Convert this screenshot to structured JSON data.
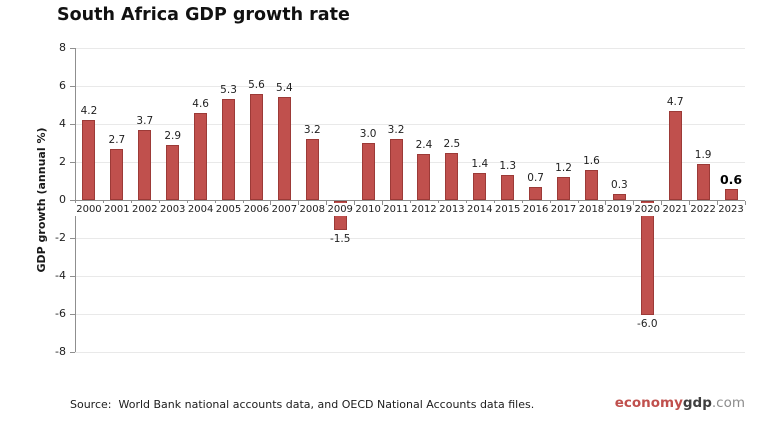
{
  "title": "South Africa GDP growth rate",
  "chart_data": {
    "type": "bar",
    "title": "South Africa GDP growth rate",
    "categories": [
      "2000",
      "2001",
      "2002",
      "2003",
      "2004",
      "2005",
      "2006",
      "2007",
      "2008",
      "2009",
      "2010",
      "2011",
      "2012",
      "2013",
      "2014",
      "2015",
      "2016",
      "2017",
      "2018",
      "2019",
      "2020",
      "2021",
      "2022",
      "2023"
    ],
    "values": [
      4.2,
      2.7,
      3.7,
      2.9,
      4.6,
      5.3,
      5.6,
      5.4,
      3.2,
      -1.5,
      3.0,
      3.2,
      2.4,
      2.5,
      1.4,
      1.3,
      0.7,
      1.2,
      1.6,
      0.3,
      -6.0,
      4.7,
      1.9,
      0.6
    ],
    "value_labels": [
      "4.2",
      "2.7",
      "3.7",
      "2.9",
      "4.6",
      "5.3",
      "5.6",
      "5.4",
      "3.2",
      "-1.5",
      "3.0",
      "3.2",
      "2.4",
      "2.5",
      "1.4",
      "1.3",
      "0.7",
      "1.2",
      "1.6",
      "0.3",
      "-6.0",
      "4.7",
      "1.9",
      "0.6"
    ],
    "xlabel": "",
    "ylabel": "GDP growth (annual %)",
    "ylim": [
      -8,
      8
    ],
    "yticks": [
      8,
      6,
      4,
      2,
      0,
      -2,
      -4,
      -6,
      -8
    ],
    "grid": true,
    "legend_position": "none",
    "bar_color": "#C0504D",
    "bar_border_color": "#9C3A37",
    "highlight_last_value": true
  },
  "footer": {
    "source": "Source:  World Bank national accounts data, and OECD National Accounts data files.",
    "logo": {
      "part_red": "economy",
      "part_dark": "gdp",
      "part_gray": ".com"
    }
  },
  "colors": {
    "bar": "#C0504D",
    "bar_border": "#9C3A37",
    "gridline": "#E9E9E9",
    "axis": "#8F8F8F",
    "logo_red": "#C0504D",
    "logo_dark": "#3F3F3F",
    "logo_gray": "#8C8C8C"
  }
}
